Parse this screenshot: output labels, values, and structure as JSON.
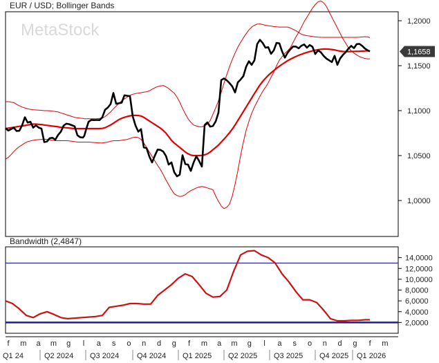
{
  "chart_data": [
    {
      "type": "line",
      "title": "EUR / USD; Bollinger Bands",
      "watermark": "MetaStock",
      "ylim": [
        0.96,
        1.21
      ],
      "y_ticks": [
        "1,2000",
        "1,1500",
        "1,1000",
        "1,0500",
        "1,0000"
      ],
      "y_tick_values": [
        1.2,
        1.15,
        1.1,
        1.05,
        1.0
      ],
      "last_value_label": "1,1658",
      "last_value": 1.1658,
      "x": [
        0,
        4,
        8,
        12,
        16,
        20,
        24,
        28,
        32,
        36,
        40,
        44,
        48,
        52,
        56,
        60,
        64,
        68,
        72,
        76,
        80,
        84,
        88,
        92,
        96,
        100,
        104,
        108,
        112,
        114,
        116,
        120,
        124,
        128,
        132,
        136,
        140,
        144,
        148,
        152,
        156,
        160,
        164,
        168,
        172,
        176,
        180,
        184,
        188,
        192,
        196,
        200,
        204,
        208,
        212,
        216,
        220,
        224,
        228,
        232,
        236,
        240,
        244,
        248,
        252,
        256,
        260,
        264,
        268,
        272,
        276,
        280,
        284,
        288,
        292,
        296,
        300,
        304,
        308,
        312,
        316,
        320,
        324,
        328,
        332,
        336,
        340,
        344,
        348,
        352,
        356,
        360,
        364,
        368,
        372,
        376,
        380,
        384,
        388,
        392,
        396,
        400,
        404,
        408,
        412,
        416,
        420,
        424,
        428,
        432,
        436,
        440,
        444,
        448,
        452,
        456,
        460,
        464,
        468,
        472,
        476,
        480,
        484,
        488,
        492,
        496,
        500,
        504,
        508,
        512,
        516,
        520,
        524,
        527
      ],
      "series": [
        {
          "color": "#000000",
          "values": [
            1.0805,
            1.0778,
            1.0795,
            1.081,
            1.0773,
            1.0776,
            1.0838,
            1.0926,
            1.0868,
            1.0876,
            1.0811,
            1.0836,
            1.0811,
            1.08,
            1.065,
            1.0657,
            1.0693,
            1.0698,
            1.0676,
            1.0729,
            1.0765,
            1.0833,
            1.0855,
            1.0849,
            1.0838,
            1.0825,
            1.0725,
            1.0704,
            1.0701,
            1.0721,
            1.0776,
            1.0875,
            1.0897,
            1.0895,
            1.0896,
            1.0895,
            1.0926,
            1.101,
            1.1035,
            1.1074,
            1.1197,
            1.1076,
            1.1082,
            1.1088,
            1.1171,
            1.1165,
            1.116,
            1.0937,
            1.0835,
            1.0766,
            1.0794,
            1.0591,
            1.0584,
            1.049,
            1.0424,
            1.0499,
            1.0567,
            1.0563,
            1.0545,
            1.0497,
            1.04,
            1.0424,
            1.0315,
            1.0269,
            1.0288,
            1.0504,
            1.0406,
            1.0399,
            1.0329,
            1.0422,
            1.0492,
            1.044,
            1.0378,
            1.084,
            1.0869,
            1.0822,
            1.0829,
            1.088,
            1.0978,
            1.1339,
            1.1358,
            1.1337,
            1.1306,
            1.1269,
            1.1202,
            1.1314,
            1.1345,
            1.1384,
            1.1488,
            1.1549,
            1.1509,
            1.1559,
            1.174,
            1.1788,
            1.1752,
            1.17,
            1.1706,
            1.1632,
            1.167,
            1.1754,
            1.1749,
            1.166,
            1.159,
            1.1643,
            1.1682,
            1.1714,
            1.1712,
            1.1693,
            1.1722,
            1.1736,
            1.17,
            1.173,
            1.1711,
            1.163,
            1.167,
            1.165,
            1.161,
            1.158,
            1.156,
            1.154,
            1.161,
            1.151,
            1.158,
            1.162,
            1.165,
            1.169,
            1.172,
            1.1695,
            1.174,
            1.1742,
            1.172,
            1.169,
            1.167,
            1.1658
          ]
        },
        {
          "color": "#e00000",
          "values": [
            1.08,
            1.0805,
            1.081,
            1.0815,
            1.082,
            1.0825,
            1.083,
            1.0835,
            1.084,
            1.0845,
            1.085,
            1.085,
            1.0848,
            1.0845,
            1.084,
            1.0836,
            1.0832,
            1.0828,
            1.0824,
            1.082,
            1.0815,
            1.0812,
            1.0809,
            1.0806,
            1.0803,
            1.08,
            1.08,
            1.08,
            1.08,
            1.08,
            1.08,
            1.08,
            1.08,
            1.08,
            1.08,
            1.08,
            1.0802,
            1.081,
            1.0825,
            1.084,
            1.086,
            1.088,
            1.09,
            1.0915,
            1.0925,
            1.0935,
            1.0942,
            1.0946,
            1.0948,
            1.0945,
            1.094,
            1.0925,
            1.0905,
            1.0885,
            1.0865,
            1.0845,
            1.0825,
            1.0805,
            1.078,
            1.075,
            1.071,
            1.067,
            1.064,
            1.0615,
            1.059,
            1.0565,
            1.054,
            1.052,
            1.0505,
            1.05,
            1.05,
            1.05,
            1.0502,
            1.0508,
            1.052,
            1.054,
            1.0565,
            1.059,
            1.0618,
            1.065,
            1.0682,
            1.0718,
            1.0755,
            1.0795,
            1.084,
            1.089,
            1.094,
            1.099,
            1.104,
            1.109,
            1.114,
            1.119,
            1.1238,
            1.1285,
            1.1325,
            1.136,
            1.1392,
            1.142,
            1.1445,
            1.147,
            1.1493,
            1.1515,
            1.1535,
            1.1555,
            1.1572,
            1.1588,
            1.1602,
            1.1615,
            1.1627,
            1.1638,
            1.1648,
            1.1657,
            1.1665,
            1.1672,
            1.1678,
            1.1682,
            1.1685,
            1.1685,
            1.1683,
            1.168,
            1.1675,
            1.1668,
            1.1662,
            1.1658,
            1.1657,
            1.1657,
            1.1658,
            1.1659,
            1.166,
            1.1661,
            1.1662,
            1.1664,
            1.1666,
            1.1664
          ]
        },
        {
          "color": "#e00000",
          "values": [
            1.11,
            1.11,
            1.1095,
            1.109,
            1.107,
            1.1055,
            1.104,
            1.103,
            1.102,
            1.1015,
            1.101,
            1.1008,
            1.1005,
            1.1003,
            1.1,
            1.1,
            1.0998,
            1.0995,
            1.099,
            1.0985,
            1.0975,
            1.0965,
            1.0955,
            1.0945,
            1.0935,
            1.0925,
            1.092,
            1.0916,
            1.0913,
            1.091,
            1.091,
            1.091,
            1.091,
            1.091,
            1.0911,
            1.0913,
            1.0915,
            1.0935,
            1.096,
            1.0985,
            1.102,
            1.105,
            1.108,
            1.111,
            1.113,
            1.115,
            1.117,
            1.1182,
            1.119,
            1.1195,
            1.12,
            1.1205,
            1.121,
            1.122,
            1.1238,
            1.1255,
            1.1268,
            1.1275,
            1.128,
            1.1265,
            1.1245,
            1.122,
            1.1195,
            1.115,
            1.1095,
            1.1025,
            1.0965,
            1.091,
            1.087,
            1.084,
            1.083,
            1.082,
            1.082,
            1.083,
            1.085,
            1.089,
            1.096,
            1.103,
            1.111,
            1.1205,
            1.1305,
            1.14,
            1.149,
            1.157,
            1.164,
            1.1705,
            1.176,
            1.181,
            1.1855,
            1.1898,
            1.193,
            1.195,
            1.1962,
            1.1965,
            1.1958,
            1.195,
            1.1945,
            1.194,
            1.1935,
            1.1932,
            1.193,
            1.193,
            1.193,
            1.193,
            1.192,
            1.1905,
            1.189,
            1.187,
            1.185,
            1.184,
            1.1834,
            1.183,
            1.1825,
            1.182,
            1.1818,
            1.1816,
            1.1815,
            1.1815,
            1.1815,
            1.1815,
            1.1815,
            1.1815,
            1.1815,
            1.1815,
            1.1815,
            1.1815,
            1.1815,
            1.1815,
            1.1815,
            1.1817,
            1.182,
            1.1822,
            1.182,
            1.1812
          ]
        },
        {
          "color": "#e00000",
          "values": [
            1.046,
            1.048,
            1.051,
            1.0545,
            1.0575,
            1.06,
            1.062,
            1.064,
            1.0655,
            1.0663,
            1.067,
            1.0675,
            1.0678,
            1.068,
            1.0682,
            1.068,
            1.0675,
            1.067,
            1.0665,
            1.0665,
            1.0665,
            1.0665,
            1.0665,
            1.0663,
            1.066,
            1.0655,
            1.065,
            1.065,
            1.065,
            1.065,
            1.065,
            1.065,
            1.0648,
            1.0645,
            1.0643,
            1.064,
            1.064,
            1.0645,
            1.065,
            1.066,
            1.0665,
            1.0665,
            1.0665,
            1.067,
            1.0675,
            1.068,
            1.069,
            1.07,
            1.0705,
            1.07,
            1.068,
            1.064,
            1.059,
            1.054,
            1.049,
            1.044,
            1.039,
            1.0345,
            1.029,
            1.023,
            1.0175,
            1.012,
            1.0075,
            1.0055,
            1.0045,
            1.005,
            1.0065,
            1.009,
            1.011,
            1.0125,
            1.014,
            1.015,
            1.0155,
            1.015,
            1.014,
            1.013,
            1.012,
            1.005,
            0.999,
            0.994,
            0.991,
            0.9925,
            0.996,
            1.005,
            1.018,
            1.033,
            1.05,
            1.065,
            1.078,
            1.088,
            1.097,
            1.104,
            1.11,
            1.116,
            1.1215,
            1.126,
            1.131,
            1.137,
            1.143,
            1.15,
            1.156,
            1.16,
            1.1635,
            1.1665,
            1.17,
            1.176,
            1.182,
            1.187,
            1.193,
            1.199,
            1.204,
            1.209,
            1.214,
            1.218,
            1.221,
            1.222,
            1.22,
            1.216,
            1.21,
            1.204,
            1.198,
            1.192,
            1.186,
            1.18,
            1.175,
            1.17,
            1.1665,
            1.164,
            1.162,
            1.16,
            1.159,
            1.158,
            1.1575,
            1.1575
          ]
        }
      ]
    },
    {
      "type": "line",
      "title": "Bandwidth (2,4847)",
      "ylim": [
        0,
        16000
      ],
      "y_ticks": [
        "14,0000",
        "12,0000",
        "10,0000",
        "8,0000",
        "6,0000",
        "4,0000",
        "2,0000"
      ],
      "y_tick_values": [
        14000,
        12000,
        10000,
        8000,
        6000,
        4000,
        2000
      ],
      "reference_lines": [
        {
          "value": 13000,
          "color": "#1a1aa8"
        },
        {
          "value": 2000,
          "color": "#1a1aa8"
        }
      ],
      "x": [
        0,
        10,
        20,
        30,
        40,
        50,
        60,
        70,
        80,
        90,
        100,
        110,
        120,
        130,
        140,
        150,
        160,
        170,
        180,
        190,
        200,
        210,
        220,
        230,
        240,
        250,
        260,
        270,
        280,
        290,
        300,
        310,
        320,
        330,
        340,
        350,
        360,
        370,
        380,
        390,
        400,
        410,
        420,
        430,
        440,
        450,
        460,
        470,
        480,
        490,
        500,
        510,
        520,
        527
      ],
      "series": [
        {
          "color": "#cc1111",
          "values": [
            6000,
            5500,
            4500,
            3300,
            2900,
            3600,
            4000,
            3500,
            2900,
            2700,
            2800,
            2900,
            3000,
            3100,
            3300,
            4800,
            5000,
            5200,
            5500,
            5500,
            5400,
            5400,
            7000,
            8000,
            9000,
            10200,
            11000,
            10500,
            9000,
            7400,
            6700,
            6800,
            8000,
            11500,
            14500,
            15200,
            15300,
            14500,
            14000,
            13000,
            11000,
            9500,
            7700,
            6200,
            6200,
            5700,
            4300,
            2700,
            2300,
            2300,
            2400,
            2400,
            2500,
            2500
          ]
        }
      ]
    }
  ],
  "x_axis": {
    "months": [
      "f",
      "m",
      "a",
      "m",
      "g",
      "l",
      "a",
      "s",
      "o",
      "n",
      "d",
      "g",
      "f",
      "m",
      "a",
      "m",
      "g",
      "l",
      "a",
      "s",
      "o",
      "n",
      "d",
      "g",
      "f",
      "m"
    ],
    "quarters": [
      "Q1 24",
      "Q2 2024",
      "Q3 2024",
      "Q4 2024",
      "Q1 2025",
      "Q2 2025",
      "Q3 2025",
      "Q4 2025",
      "Q1 2026"
    ]
  },
  "colors": {
    "price": "#000000",
    "bands": "#e00000",
    "bandwidth": "#cc1111",
    "threshold": "#1a1aa8",
    "badge_bg": "#3a3a3a",
    "badge_text": "#ffffff",
    "watermark": "#d9d9d9"
  }
}
